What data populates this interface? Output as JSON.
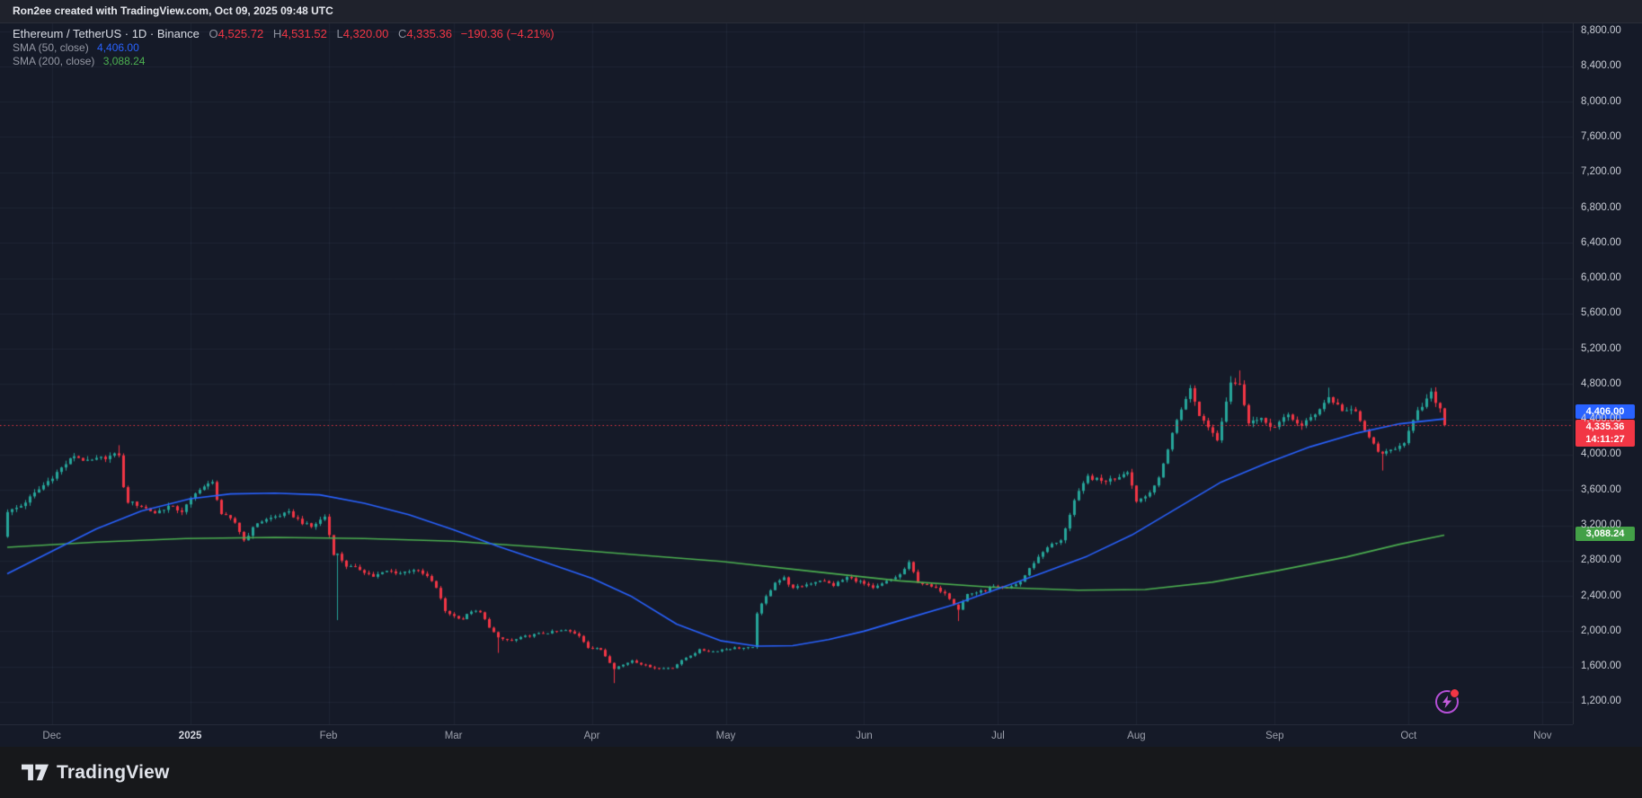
{
  "topbar": {
    "watermark": "Ron2ee created with TradingView.com, Oct 09, 2025 09:48 UTC"
  },
  "legend": {
    "symbol": "Ethereum / TetherUS · 1D · Binance",
    "ohlc": {
      "o_label": "O",
      "o": "4,525.72",
      "h_label": "H",
      "h": "4,531.52",
      "l_label": "L",
      "l": "4,320.00",
      "c_label": "C",
      "c": "4,335.36",
      "change": "−190.36 (−4.21%)"
    },
    "sma50_label": "SMA (50, close)",
    "sma50_value": "4,406.00",
    "sma200_label": "SMA (200, close)",
    "sma200_value": "3,088.24"
  },
  "axis_badges": {
    "sma50": "4,406.00",
    "last_price": "4,335.36",
    "countdown": "14:11:27",
    "sma200": "3,088.24"
  },
  "footer": {
    "logo_text": "TradingView"
  },
  "colors": {
    "up": "#26a69a",
    "down": "#f23645",
    "sma50": "#2962ff",
    "sma200": "#4caf50",
    "price_line": "#f23645",
    "background": "#151a28",
    "badge_blue": "#2962ff",
    "badge_red": "#f23645",
    "badge_green": "#43a047"
  },
  "chart_data": {
    "type": "candlestick",
    "title": "Ethereum / TetherUS",
    "interval": "1D",
    "exchange": "Binance",
    "last_candle": {
      "open": 4525.72,
      "high": 4531.52,
      "low": 4320.0,
      "close": 4335.36
    },
    "price_line": 4335.36,
    "y_axis": {
      "min": 1200,
      "max": 8800,
      "step": 400,
      "labels": [
        {
          "p": 8800,
          "t": "8,800.00"
        },
        {
          "p": 8400,
          "t": "8,400.00"
        },
        {
          "p": 8000,
          "t": "8,000.00"
        },
        {
          "p": 7600,
          "t": "7,600.00"
        },
        {
          "p": 7200,
          "t": "7,200.00"
        },
        {
          "p": 6800,
          "t": "6,800.00"
        },
        {
          "p": 6400,
          "t": "6,400.00"
        },
        {
          "p": 6000,
          "t": "6,000.00"
        },
        {
          "p": 5600,
          "t": "5,600.00"
        },
        {
          "p": 5200,
          "t": "5,200.00"
        },
        {
          "p": 4800,
          "t": "4,800.00"
        },
        {
          "p": 4400,
          "t": "4,400.00"
        },
        {
          "p": 4000,
          "t": "4,000.00"
        },
        {
          "p": 3600,
          "t": "3,600.00"
        },
        {
          "p": 3200,
          "t": "3,200.00"
        },
        {
          "p": 2800,
          "t": "2,800.00"
        },
        {
          "p": 2400,
          "t": "2,400.00"
        },
        {
          "p": 2000,
          "t": "2,000.00"
        },
        {
          "p": 1600,
          "t": "1,600.00"
        },
        {
          "p": 1200,
          "t": "1,200.00"
        }
      ]
    },
    "x_axis": {
      "labels": [
        {
          "text": "Dec",
          "day": 10
        },
        {
          "text": "2025",
          "day": 41,
          "year": true
        },
        {
          "text": "Feb",
          "day": 72
        },
        {
          "text": "Mar",
          "day": 100
        },
        {
          "text": "Apr",
          "day": 131
        },
        {
          "text": "May",
          "day": 161
        },
        {
          "text": "Jun",
          "day": 192
        },
        {
          "text": "Jul",
          "day": 222
        },
        {
          "text": "Aug",
          "day": 253
        },
        {
          "text": "Sep",
          "day": 284
        },
        {
          "text": "Oct",
          "day": 314
        },
        {
          "text": "Nov",
          "day": 344
        }
      ]
    },
    "first_open": 3070,
    "close_anchors": [
      [
        0,
        3350
      ],
      [
        3,
        3420
      ],
      [
        6,
        3560
      ],
      [
        9,
        3700
      ],
      [
        12,
        3850
      ],
      [
        15,
        3990
      ],
      [
        18,
        3920
      ],
      [
        21,
        3960
      ],
      [
        25,
        4005
      ],
      [
        26,
        3620
      ],
      [
        27,
        3470
      ],
      [
        30,
        3415
      ],
      [
        33,
        3340
      ],
      [
        36,
        3415
      ],
      [
        39,
        3360
      ],
      [
        43,
        3620
      ],
      [
        46,
        3680
      ],
      [
        48,
        3330
      ],
      [
        51,
        3230
      ],
      [
        53,
        3030
      ],
      [
        56,
        3230
      ],
      [
        60,
        3300
      ],
      [
        63,
        3340
      ],
      [
        66,
        3230
      ],
      [
        68,
        3180
      ],
      [
        71,
        3300
      ],
      [
        73,
        2880
      ],
      [
        74,
        2870
      ],
      [
        76,
        2740
      ],
      [
        79,
        2700
      ],
      [
        82,
        2620
      ],
      [
        85,
        2680
      ],
      [
        88,
        2660
      ],
      [
        91,
        2700
      ],
      [
        94,
        2620
      ],
      [
        96,
        2495
      ],
      [
        98,
        2230
      ],
      [
        100,
        2170
      ],
      [
        102,
        2140
      ],
      [
        104,
        2230
      ],
      [
        106,
        2210
      ],
      [
        108,
        2050
      ],
      [
        110,
        1920
      ],
      [
        113,
        1890
      ],
      [
        116,
        1940
      ],
      [
        119,
        1970
      ],
      [
        122,
        1990
      ],
      [
        125,
        2010
      ],
      [
        128,
        1950
      ],
      [
        130,
        1820
      ],
      [
        133,
        1790
      ],
      [
        136,
        1580
      ],
      [
        138,
        1620
      ],
      [
        140,
        1670
      ],
      [
        143,
        1610
      ],
      [
        146,
        1577
      ],
      [
        149,
        1590
      ],
      [
        152,
        1700
      ],
      [
        155,
        1786
      ],
      [
        158,
        1770
      ],
      [
        160,
        1793
      ],
      [
        163,
        1810
      ],
      [
        167,
        1810
      ],
      [
        168,
        2210
      ],
      [
        170,
        2390
      ],
      [
        172,
        2560
      ],
      [
        174,
        2600
      ],
      [
        176,
        2480
      ],
      [
        179,
        2530
      ],
      [
        182,
        2580
      ],
      [
        185,
        2520
      ],
      [
        188,
        2610
      ],
      [
        191,
        2560
      ],
      [
        194,
        2480
      ],
      [
        197,
        2560
      ],
      [
        200,
        2640
      ],
      [
        202,
        2770
      ],
      [
        204,
        2560
      ],
      [
        207,
        2500
      ],
      [
        210,
        2440
      ],
      [
        213,
        2250
      ],
      [
        215,
        2420
      ],
      [
        218,
        2450
      ],
      [
        221,
        2500
      ],
      [
        224,
        2480
      ],
      [
        227,
        2560
      ],
      [
        230,
        2780
      ],
      [
        233,
        2960
      ],
      [
        236,
        3020
      ],
      [
        239,
        3480
      ],
      [
        242,
        3750
      ],
      [
        245,
        3700
      ],
      [
        248,
        3730
      ],
      [
        251,
        3820
      ],
      [
        253,
        3480
      ],
      [
        255,
        3530
      ],
      [
        258,
        3720
      ],
      [
        261,
        4250
      ],
      [
        264,
        4650
      ],
      [
        265,
        4740
      ],
      [
        267,
        4450
      ],
      [
        269,
        4320
      ],
      [
        271,
        4180
      ],
      [
        274,
        4830
      ],
      [
        276,
        4780
      ],
      [
        278,
        4380
      ],
      [
        281,
        4390
      ],
      [
        284,
        4310
      ],
      [
        287,
        4450
      ],
      [
        290,
        4320
      ],
      [
        293,
        4470
      ],
      [
        296,
        4650
      ],
      [
        299,
        4510
      ],
      [
        302,
        4480
      ],
      [
        305,
        4180
      ],
      [
        308,
        3990
      ],
      [
        310,
        4050
      ],
      [
        313,
        4150
      ],
      [
        316,
        4480
      ],
      [
        319,
        4690
      ],
      [
        321,
        4525
      ],
      [
        322,
        4335.36
      ]
    ],
    "wick_overrides": [
      {
        "day": 25,
        "high": 4107
      },
      {
        "day": 74,
        "low": 2125
      },
      {
        "day": 110,
        "low": 1754
      },
      {
        "day": 136,
        "low": 1411
      },
      {
        "day": 213,
        "low": 2114
      },
      {
        "day": 274,
        "high": 4890
      },
      {
        "day": 276,
        "high": 4955
      },
      {
        "day": 296,
        "high": 4760
      },
      {
        "day": 308,
        "low": 3820
      },
      {
        "day": 319,
        "high": 4756
      },
      {
        "day": 322,
        "high": 4531.52,
        "low": 4320
      }
    ],
    "sma50": {
      "name": "SMA (50, close)",
      "value": 4406.0,
      "points": [
        [
          0,
          2650
        ],
        [
          10,
          2905
        ],
        [
          20,
          3160
        ],
        [
          30,
          3360
        ],
        [
          41,
          3500
        ],
        [
          50,
          3555
        ],
        [
          60,
          3565
        ],
        [
          70,
          3545
        ],
        [
          80,
          3450
        ],
        [
          90,
          3320
        ],
        [
          100,
          3150
        ],
        [
          110,
          2960
        ],
        [
          120,
          2790
        ],
        [
          131,
          2600
        ],
        [
          140,
          2390
        ],
        [
          150,
          2080
        ],
        [
          160,
          1890
        ],
        [
          168,
          1830
        ],
        [
          176,
          1835
        ],
        [
          184,
          1905
        ],
        [
          192,
          2000
        ],
        [
          202,
          2150
        ],
        [
          212,
          2300
        ],
        [
          222,
          2480
        ],
        [
          232,
          2660
        ],
        [
          242,
          2850
        ],
        [
          252,
          3090
        ],
        [
          262,
          3390
        ],
        [
          272,
          3690
        ],
        [
          282,
          3900
        ],
        [
          292,
          4090
        ],
        [
          302,
          4240
        ],
        [
          312,
          4350
        ],
        [
          322,
          4406
        ]
      ]
    },
    "sma200": {
      "name": "SMA (200, close)",
      "value": 3088.24,
      "points": [
        [
          0,
          2950
        ],
        [
          20,
          3010
        ],
        [
          40,
          3050
        ],
        [
          60,
          3062
        ],
        [
          80,
          3050
        ],
        [
          100,
          3020
        ],
        [
          120,
          2950
        ],
        [
          140,
          2870
        ],
        [
          160,
          2790
        ],
        [
          180,
          2680
        ],
        [
          200,
          2570
        ],
        [
          220,
          2500
        ],
        [
          240,
          2465
        ],
        [
          255,
          2472
        ],
        [
          270,
          2555
        ],
        [
          285,
          2690
        ],
        [
          300,
          2840
        ],
        [
          312,
          2985
        ],
        [
          322,
          3088
        ]
      ]
    }
  }
}
